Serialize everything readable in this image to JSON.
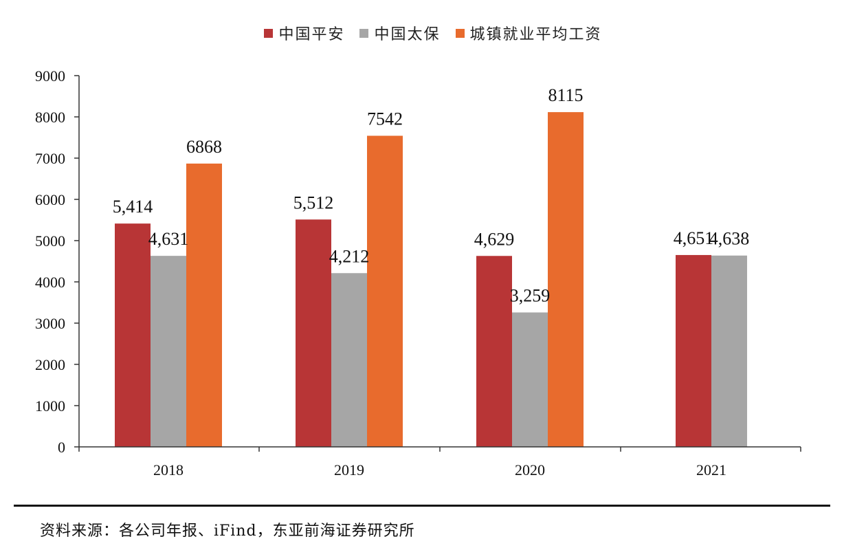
{
  "chart_data": {
    "type": "bar",
    "categories": [
      "2018",
      "2019",
      "2020",
      "2021"
    ],
    "series": [
      {
        "name": "中国平安",
        "color": "#b83536",
        "values": [
          5414,
          5512,
          4629,
          4651
        ],
        "value_labels": [
          "5,414",
          "5,512",
          "4,629",
          "4,651"
        ]
      },
      {
        "name": "中国太保",
        "color": "#a6a6a6",
        "values": [
          4631,
          4212,
          3259,
          4638
        ],
        "value_labels": [
          "4,631",
          "4,212",
          "3,259",
          "4,638"
        ]
      },
      {
        "name": "城镇就业平均工资",
        "color": "#e86b2d",
        "values": [
          6868,
          7542,
          8115,
          null
        ],
        "value_labels": [
          "6868",
          "7542",
          "8115",
          null
        ]
      }
    ],
    "ylim": [
      0,
      9000
    ],
    "yticks": [
      0,
      1000,
      2000,
      3000,
      4000,
      5000,
      6000,
      7000,
      8000,
      9000
    ],
    "ytick_labels": [
      "0",
      "1000",
      "2000",
      "3000",
      "4000",
      "5000",
      "6000",
      "7000",
      "8000",
      "9000"
    ],
    "legend_position": "top-center",
    "grid": false
  },
  "source_note": "资料来源：各公司年报、iFind，东亚前海证券研究所"
}
